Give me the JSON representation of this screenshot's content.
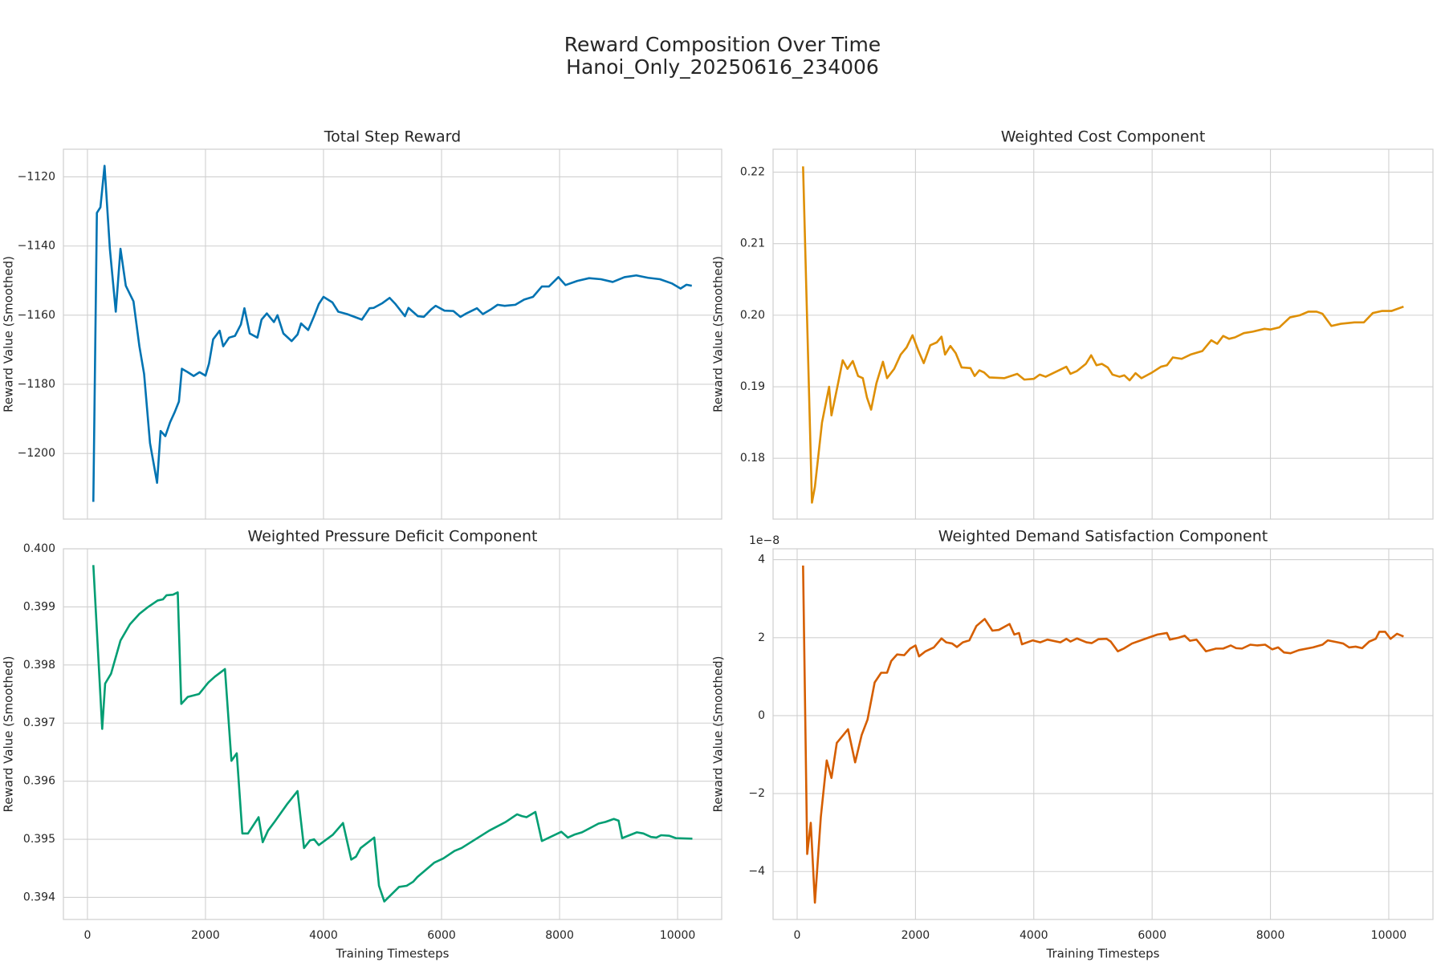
{
  "title": [
    "Reward Composition Over Time",
    "Hanoi_Only_20250616_234006"
  ],
  "chart_data": [
    {
      "type": "line",
      "title": "Total Step Reward",
      "ylabel": "Reward Value (Smoothed)",
      "color": "#0173b2",
      "grid": true,
      "show_xticklabels": false,
      "xlim": [
        -407,
        10747
      ],
      "xticks": [
        0,
        2000,
        4000,
        6000,
        8000,
        10000
      ],
      "ylim": [
        -1219,
        -1112
      ],
      "yticks": [
        {
          "value": -1200,
          "label": "−1200"
        },
        {
          "value": -1180,
          "label": "−1180"
        },
        {
          "value": -1160,
          "label": "−1160"
        },
        {
          "value": -1140,
          "label": "−1140"
        },
        {
          "value": -1120,
          "label": "−1120"
        }
      ],
      "x": [
        100,
        160,
        220,
        290,
        380,
        480,
        560,
        650,
        780,
        880,
        960,
        1060,
        1180,
        1240,
        1320,
        1400,
        1480,
        1550,
        1600,
        1700,
        1800,
        1900,
        2000,
        2060,
        2130,
        2240,
        2300,
        2400,
        2500,
        2600,
        2660,
        2750,
        2880,
        2950,
        3040,
        3160,
        3220,
        3320,
        3460,
        3560,
        3620,
        3740,
        3840,
        3920,
        4000,
        4150,
        4250,
        4400,
        4650,
        4780,
        4850,
        5000,
        5120,
        5220,
        5380,
        5440,
        5600,
        5700,
        5820,
        5900,
        6050,
        6200,
        6320,
        6420,
        6600,
        6700,
        6830,
        6950,
        7070,
        7250,
        7400,
        7550,
        7700,
        7820,
        7980,
        8100,
        8300,
        8500,
        8700,
        8900,
        9100,
        9300,
        9500,
        9700,
        9900,
        10050,
        10150,
        10240
      ],
      "values": [
        -1214,
        -1130.4,
        -1128.8,
        -1116.8,
        -1140.8,
        -1159,
        -1140.8,
        -1151.5,
        -1156,
        -1169,
        -1177,
        -1197,
        -1208.5,
        -1193.5,
        -1195,
        -1191,
        -1188,
        -1185,
        -1175.5,
        -1176.5,
        -1177.6,
        -1176.5,
        -1177.5,
        -1174,
        -1167,
        -1164.5,
        -1169,
        -1166.5,
        -1166,
        -1162.7,
        -1158,
        -1165.3,
        -1166.5,
        -1161.3,
        -1159.5,
        -1162,
        -1160,
        -1165.3,
        -1167.5,
        -1165.6,
        -1162.4,
        -1164.3,
        -1160.3,
        -1156.8,
        -1154.7,
        -1156.3,
        -1159,
        -1159.7,
        -1161.3,
        -1158,
        -1157.9,
        -1156.5,
        -1155,
        -1156.8,
        -1160.3,
        -1157.9,
        -1160.3,
        -1160.5,
        -1158.4,
        -1157.3,
        -1158.7,
        -1158.8,
        -1160.5,
        -1159.5,
        -1158,
        -1159.7,
        -1158.4,
        -1157,
        -1157.3,
        -1157,
        -1155.5,
        -1154.7,
        -1151.7,
        -1151.7,
        -1149,
        -1151.3,
        -1150.1,
        -1149.3,
        -1149.6,
        -1150.4,
        -1149,
        -1148.5,
        -1149.2,
        -1149.6,
        -1150.8,
        -1152.3,
        -1151.2,
        -1151.5
      ]
    },
    {
      "type": "line",
      "title": "Weighted Cost Component",
      "ylabel": "Reward Value (Smoothed)",
      "color": "#de8f05",
      "grid": true,
      "show_xticklabels": false,
      "xlim": [
        -407,
        10747
      ],
      "xticks": [
        0,
        2000,
        4000,
        6000,
        8000,
        10000
      ],
      "ylim": [
        0.1715,
        0.2232
      ],
      "yticks": [
        0.18,
        0.19,
        {
          "value": 0.2,
          "label": "0.20"
        },
        0.21,
        0.22
      ],
      "x": [
        100,
        250,
        300,
        420,
        540,
        580,
        680,
        770,
        850,
        940,
        1030,
        1110,
        1180,
        1250,
        1340,
        1450,
        1520,
        1640,
        1750,
        1850,
        1950,
        2050,
        2140,
        2250,
        2360,
        2440,
        2500,
        2590,
        2680,
        2780,
        2930,
        3000,
        3080,
        3160,
        3250,
        3500,
        3720,
        3840,
        4000,
        4100,
        4200,
        4400,
        4550,
        4620,
        4730,
        4880,
        4970,
        5060,
        5150,
        5250,
        5330,
        5450,
        5530,
        5620,
        5720,
        5820,
        6000,
        6150,
        6250,
        6350,
        6500,
        6650,
        6850,
        7000,
        7100,
        7200,
        7300,
        7400,
        7550,
        7700,
        7900,
        8000,
        8150,
        8330,
        8500,
        8640,
        8780,
        8880,
        9030,
        9190,
        9420,
        9580,
        9730,
        9890,
        10050,
        10250
      ],
      "values": [
        0.2208,
        0.1738,
        0.176,
        0.185,
        0.19,
        0.186,
        0.19,
        0.1937,
        0.1925,
        0.1936,
        0.1915,
        0.1912,
        0.1885,
        0.1868,
        0.1905,
        0.1935,
        0.1912,
        0.1925,
        0.1945,
        0.1955,
        0.1972,
        0.195,
        0.1933,
        0.1958,
        0.1962,
        0.197,
        0.1945,
        0.1957,
        0.1947,
        0.1927,
        0.1926,
        0.1915,
        0.1923,
        0.192,
        0.1913,
        0.1912,
        0.1918,
        0.191,
        0.1911,
        0.1917,
        0.1914,
        0.1922,
        0.1928,
        0.1918,
        0.1922,
        0.1932,
        0.1944,
        0.193,
        0.1932,
        0.1927,
        0.1917,
        0.1914,
        0.1916,
        0.1909,
        0.1919,
        0.1912,
        0.192,
        0.1928,
        0.193,
        0.1941,
        0.1939,
        0.1945,
        0.195,
        0.1965,
        0.196,
        0.1971,
        0.1967,
        0.1969,
        0.1975,
        0.1977,
        0.1981,
        0.198,
        0.1983,
        0.1997,
        0.2,
        0.2005,
        0.2005,
        0.2002,
        0.1985,
        0.1988,
        0.199,
        0.199,
        0.2003,
        0.2006,
        0.2006,
        0.2012
      ]
    },
    {
      "type": "line",
      "title": "Weighted Pressure Deficit Component",
      "ylabel": "Reward Value (Smoothed)",
      "xlabel": "Training Timesteps",
      "color": "#029e73",
      "grid": true,
      "show_xticklabels": true,
      "xlim": [
        -407,
        10747
      ],
      "xticks": [
        0,
        2000,
        4000,
        6000,
        8000,
        10000
      ],
      "ylim": [
        0.39362,
        0.4
      ],
      "yticks": [
        0.394,
        0.395,
        0.396,
        0.397,
        0.398,
        0.399,
        {
          "value": 0.4,
          "label": "0.400"
        }
      ],
      "x": [
        100,
        250,
        300,
        400,
        560,
        720,
        880,
        1030,
        1190,
        1280,
        1340,
        1450,
        1530,
        1590,
        1700,
        1890,
        2050,
        2160,
        2330,
        2440,
        2530,
        2625,
        2720,
        2900,
        2970,
        3060,
        3170,
        3380,
        3560,
        3670,
        3770,
        3840,
        3920,
        4160,
        4330,
        4470,
        4550,
        4630,
        4860,
        4940,
        5030,
        5280,
        5410,
        5520,
        5590,
        5880,
        6030,
        6220,
        6340,
        6810,
        7090,
        7280,
        7360,
        7440,
        7590,
        7700,
        8030,
        8140,
        8250,
        8380,
        8660,
        8780,
        8920,
        9000,
        9060,
        9310,
        9420,
        9550,
        9640,
        9720,
        9860,
        9970,
        10250
      ],
      "values": [
        0.39972,
        0.3969,
        0.39768,
        0.39785,
        0.39842,
        0.3987,
        0.39888,
        0.399,
        0.39911,
        0.39913,
        0.3992,
        0.39921,
        0.39925,
        0.39733,
        0.39745,
        0.3975,
        0.3977,
        0.3978,
        0.39793,
        0.39635,
        0.39648,
        0.3951,
        0.3951,
        0.39538,
        0.39495,
        0.39515,
        0.3953,
        0.3956,
        0.39583,
        0.39485,
        0.39498,
        0.395,
        0.3949,
        0.39508,
        0.39528,
        0.39465,
        0.3947,
        0.39485,
        0.39503,
        0.3942,
        0.39393,
        0.39418,
        0.3942,
        0.39427,
        0.39435,
        0.3946,
        0.39467,
        0.3948,
        0.39485,
        0.39515,
        0.3953,
        0.39543,
        0.3954,
        0.39538,
        0.39547,
        0.39497,
        0.39513,
        0.39503,
        0.39508,
        0.39512,
        0.39527,
        0.3953,
        0.39535,
        0.39532,
        0.39502,
        0.39512,
        0.3951,
        0.39504,
        0.39503,
        0.39507,
        0.39506,
        0.39502,
        0.39501
      ]
    },
    {
      "type": "line",
      "title": "Weighted Demand Satisfaction Component",
      "ylabel": "Reward Value (Smoothed)",
      "xlabel": "Training Timesteps",
      "y_offset_label": "1e−8",
      "color": "#d55e00",
      "grid": true,
      "show_xticklabels": true,
      "xlim": [
        -407,
        10747
      ],
      "xticks": [
        0,
        2000,
        4000,
        6000,
        8000,
        10000
      ],
      "ylim": [
        -5.23,
        4.28
      ],
      "yticks": [
        {
          "value": -4,
          "label": "−4"
        },
        {
          "value": -2,
          "label": "−2"
        },
        0,
        2,
        4
      ],
      "x": [
        100,
        170,
        230,
        300,
        400,
        500,
        580,
        670,
        860,
        980,
        1090,
        1190,
        1310,
        1420,
        1520,
        1590,
        1690,
        1810,
        1910,
        2000,
        2060,
        2170,
        2310,
        2440,
        2520,
        2620,
        2700,
        2800,
        2910,
        3030,
        3170,
        3300,
        3410,
        3590,
        3670,
        3750,
        3800,
        3980,
        4110,
        4230,
        4450,
        4550,
        4620,
        4730,
        4890,
        4980,
        5090,
        5230,
        5300,
        5420,
        5520,
        5660,
        5900,
        6090,
        6250,
        6300,
        6450,
        6550,
        6640,
        6750,
        6910,
        7080,
        7200,
        7330,
        7420,
        7520,
        7660,
        7780,
        7910,
        8030,
        8130,
        8230,
        8340,
        8480,
        8720,
        8880,
        8970,
        9140,
        9230,
        9330,
        9440,
        9550,
        9670,
        9780,
        9840,
        9940,
        10030,
        10140,
        10250
      ],
      "values": [
        3.85,
        -3.55,
        -2.75,
        -4.8,
        -2.6,
        -1.15,
        -1.6,
        -0.7,
        -0.35,
        -1.2,
        -0.5,
        -0.1,
        0.85,
        1.1,
        1.1,
        1.4,
        1.57,
        1.55,
        1.72,
        1.8,
        1.52,
        1.65,
        1.75,
        1.98,
        1.88,
        1.85,
        1.76,
        1.88,
        1.93,
        2.3,
        2.48,
        2.18,
        2.2,
        2.35,
        2.08,
        2.12,
        1.83,
        1.93,
        1.88,
        1.95,
        1.88,
        1.97,
        1.9,
        1.98,
        1.88,
        1.86,
        1.96,
        1.97,
        1.9,
        1.65,
        1.72,
        1.85,
        1.98,
        2.08,
        2.12,
        1.95,
        2.0,
        2.05,
        1.92,
        1.95,
        1.65,
        1.72,
        1.72,
        1.8,
        1.73,
        1.72,
        1.82,
        1.8,
        1.82,
        1.7,
        1.75,
        1.62,
        1.6,
        1.68,
        1.75,
        1.82,
        1.93,
        1.88,
        1.85,
        1.75,
        1.77,
        1.73,
        1.9,
        1.97,
        2.15,
        2.15,
        1.97,
        2.1,
        2.03
      ]
    }
  ]
}
